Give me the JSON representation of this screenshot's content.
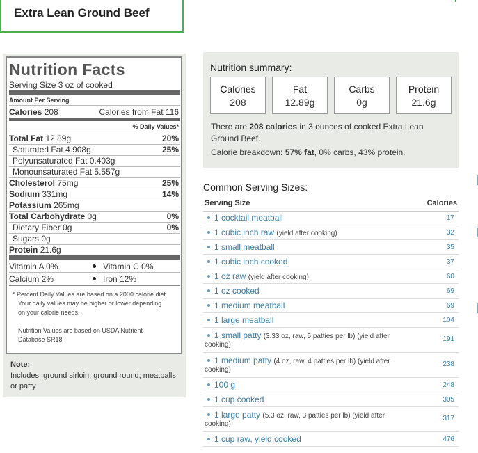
{
  "food_title": "Extra Lean Ground Beef",
  "nutrition_facts": {
    "heading": "Nutrition Facts",
    "serving_size": "Serving Size 3 oz of cooked",
    "amount_per_serving": "Amount Per Serving",
    "calories_label": "Calories",
    "calories_value": "208",
    "calories_from_fat": "Calories from Fat 116",
    "daily_values_header": "% Daily Values*",
    "rows": [
      {
        "label": "Total Fat",
        "amount": "12.89g",
        "dv": "20%"
      },
      {
        "label": "Saturated Fat",
        "amount": "4.908g",
        "dv": "25%"
      },
      {
        "label": "Polyunsaturated Fat",
        "amount": "0.403g",
        "dv": ""
      },
      {
        "label": "Monounsaturated Fat",
        "amount": "5.557g",
        "dv": ""
      },
      {
        "label": "Cholesterol",
        "amount": "75mg",
        "dv": "25%"
      },
      {
        "label": "Sodium",
        "amount": "331mg",
        "dv": "14%"
      },
      {
        "label": "Potassium",
        "amount": "265mg",
        "dv": ""
      },
      {
        "label": "Total Carbohydrate",
        "amount": "0g",
        "dv": "0%"
      },
      {
        "label": "Dietary Fiber",
        "amount": "0g",
        "dv": "0%"
      },
      {
        "label": "Sugars",
        "amount": "0g",
        "dv": ""
      },
      {
        "label": "Protein",
        "amount": "21.6g",
        "dv": ""
      }
    ],
    "vitamins": {
      "vitamin_a": "Vitamin A 0%",
      "vitamin_c": "Vitamin C 0%",
      "calcium": "Calcium 2%",
      "iron": "Iron 12%"
    },
    "footnote_1": "* Percent Daily Values are based on a 2000 calorie diet.",
    "footnote_2": "Your daily values may be higher or lower depending",
    "footnote_3": "on your calorie needs.",
    "source_1": "Nutrition Values are based on USDA Nutrient",
    "source_2": "Database SR18"
  },
  "note": {
    "label": "Note:",
    "text": "Includes: ground sirloin; ground round; meatballs or patty"
  },
  "summary": {
    "heading": "Nutrition summary:",
    "boxes": [
      {
        "label": "Calories",
        "value": "208"
      },
      {
        "label": "Fat",
        "value": "12.89g"
      },
      {
        "label": "Carbs",
        "value": "0g"
      },
      {
        "label": "Protein",
        "value": "21.6g"
      }
    ],
    "p1_pre": "There are ",
    "p1_bold": "208 calories",
    "p1_post": " in 3 ounces of cooked Extra Lean Ground Beef.",
    "p2_pre": "Calorie breakdown: ",
    "p2_bold": "57% fat",
    "p2_post": ", 0% carbs, 43% protein."
  },
  "serving_sizes": {
    "heading": "Common Serving Sizes:",
    "col_size": "Serving Size",
    "col_cal": "Calories",
    "items": [
      {
        "name": "1 cocktail meatball",
        "note": "",
        "cal": "17"
      },
      {
        "name": "1 cubic inch raw",
        "note": "(yield after cooking)",
        "cal": "32"
      },
      {
        "name": "1 small meatball",
        "note": "",
        "cal": "35"
      },
      {
        "name": "1 cubic inch cooked",
        "note": "",
        "cal": "37"
      },
      {
        "name": "1 oz raw",
        "note": "(yield after cooking)",
        "cal": "60"
      },
      {
        "name": "1 oz cooked",
        "note": "",
        "cal": "69"
      },
      {
        "name": "1 medium meatball",
        "note": "",
        "cal": "69"
      },
      {
        "name": "1 large meatball",
        "note": "",
        "cal": "104"
      },
      {
        "name": "1 small patty",
        "note": "(3.33 oz, raw, 5 patties per lb) (yield after",
        "note2": "cooking)",
        "cal": "191"
      },
      {
        "name": "1 medium patty",
        "note": "(4 oz, raw, 4 patties per lb) (yield after",
        "note2": "cooking)",
        "cal": "238"
      },
      {
        "name": "100 g",
        "note": "",
        "cal": "248"
      },
      {
        "name": "1 cup cooked",
        "note": "",
        "cal": "305"
      },
      {
        "name": "1 large patty",
        "note": "(5.3 oz, raw, 3 patties per lb) (yield after",
        "note2": "cooking)",
        "cal": "317"
      },
      {
        "name": "1 cup raw, yield cooked",
        "note": "",
        "cal": "476"
      }
    ]
  }
}
